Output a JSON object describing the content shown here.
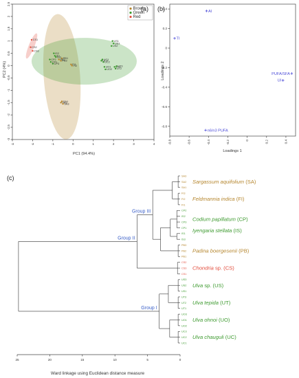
{
  "colors": {
    "Brown": "#b5862e",
    "Green": "#3d9a2f",
    "Red": "#e24d3d",
    "group": "#3a5fc8",
    "loading": "#4d4dd8"
  },
  "panels": {
    "a": "(a)",
    "b": "(b)",
    "c": "(c)"
  },
  "chart_data": [
    {
      "type": "scatter",
      "panel": "a",
      "xlabel": "PC1 (94.4%)",
      "ylabel": "PC2 (4%)",
      "xlim": [
        -3,
        4
      ],
      "ylim": [
        -3,
        2.5
      ],
      "xticks": [
        "-3",
        "-2",
        "-1",
        "0",
        "1",
        "2",
        "3",
        "4"
      ],
      "yticks": [
        "-3",
        "-2.5",
        "-2",
        "-1.5",
        "-1",
        "-0.5",
        "0",
        "0.5",
        "1",
        "1.5",
        "2",
        "2.5"
      ],
      "legend": {
        "placement": "top-right",
        "entries": [
          "Brown",
          "Green",
          "Red"
        ]
      },
      "groups": [
        {
          "name": "Brown",
          "ellipse": {
            "cx": -0.55,
            "cy": -0.45,
            "rx": 0.9,
            "ry": 2.55,
            "angle": -4
          },
          "points": [
            {
              "label": "SA1",
              "x": -0.55,
              "y": -1.45
            },
            {
              "label": "SA2",
              "x": -0.6,
              "y": -1.5
            },
            {
              "label": "SA3",
              "x": -0.5,
              "y": -1.55
            },
            {
              "label": "FI1",
              "x": -0.1,
              "y": 0.05
            },
            {
              "label": "FI2",
              "x": -0.05,
              "y": 0.0
            },
            {
              "label": "PB1",
              "x": -0.55,
              "y": 0.3
            },
            {
              "label": "PB2",
              "x": -0.7,
              "y": 0.25
            },
            {
              "label": "PB3",
              "x": -0.6,
              "y": 0.2
            }
          ]
        },
        {
          "name": "Green",
          "ellipse": {
            "cx": 0.55,
            "cy": 0.18,
            "rx": 2.6,
            "ry": 0.95,
            "angle": 0
          },
          "points": [
            {
              "label": "US1",
              "x": 1.95,
              "y": 1.0
            },
            {
              "label": "US2",
              "x": 1.9,
              "y": 0.8
            },
            {
              "label": "US3",
              "x": 2.0,
              "y": 0.9
            },
            {
              "label": "UT1",
              "x": 2.05,
              "y": -0.05
            },
            {
              "label": "UT2",
              "x": 2.1,
              "y": -0.12
            },
            {
              "label": "UT3",
              "x": 2.15,
              "y": -0.02
            },
            {
              "label": "UC1",
              "x": 1.45,
              "y": 0.25
            },
            {
              "label": "UC2",
              "x": 1.5,
              "y": 0.15
            },
            {
              "label": "UC3",
              "x": 1.4,
              "y": 0.2
            },
            {
              "label": "UO1",
              "x": 1.55,
              "y": -0.05
            },
            {
              "label": "UO2",
              "x": 1.6,
              "y": -0.15
            },
            {
              "label": "CP1",
              "x": -1.1,
              "y": 0.15
            },
            {
              "label": "CP2",
              "x": -1.15,
              "y": 0.25
            },
            {
              "label": "CP3",
              "x": -1.0,
              "y": 0.08
            },
            {
              "label": "IS1",
              "x": -0.9,
              "y": 0.4
            },
            {
              "label": "IS2",
              "x": -0.95,
              "y": 0.5
            },
            {
              "label": "IS3",
              "x": -0.85,
              "y": 0.35
            }
          ]
        },
        {
          "name": "Red",
          "ellipse": {
            "cx": -2.05,
            "cy": 0.8,
            "rx": 0.14,
            "ry": 0.55,
            "angle": 22
          },
          "points": [
            {
              "label": "CS1",
              "x": -2.05,
              "y": 1.05
            },
            {
              "label": "CS2",
              "x": -2.1,
              "y": 0.75
            },
            {
              "label": "CS3",
              "x": -2.0,
              "y": 0.6
            }
          ]
        }
      ]
    },
    {
      "type": "scatter",
      "panel": "b",
      "xlabel": "Loadings 1",
      "ylabel": "Loadings 2",
      "xlim": [
        -0.8,
        0.5
      ],
      "ylim": [
        -0.9,
        0.45
      ],
      "xticks": [
        "-0.8",
        "-0.6",
        "-0.4",
        "-0.2",
        "0",
        "0.2",
        "0.4"
      ],
      "yticks": [
        "-0.8",
        "-0.6",
        "-0.4",
        "-0.2",
        "0",
        "0.2",
        "0.4"
      ],
      "points": [
        {
          "label": "AI",
          "x": -0.42,
          "y": 0.38
        },
        {
          "label": "TI",
          "x": -0.75,
          "y": 0.1
        },
        {
          "label": "PUFA/SFA",
          "x": 0.46,
          "y": -0.26
        },
        {
          "label": "UI",
          "x": 0.37,
          "y": -0.33
        },
        {
          "label": "n6/n3 PUFA",
          "x": -0.43,
          "y": -0.84
        }
      ]
    },
    {
      "type": "dendrogram",
      "panel": "c",
      "xlabel": "Ward linkage using Euclidean distance measure",
      "xlim": [
        25,
        0
      ],
      "xticks": [
        "25",
        "20",
        "15",
        "10",
        "5",
        "0"
      ],
      "leaves": [
        "SA3",
        "SA2",
        "SA1",
        "FI3",
        "FI2",
        "FI1",
        "CP2",
        "IS2",
        "CP3",
        "CP1",
        "IS1",
        "IS3",
        "PB3",
        "PB2",
        "PB1",
        "CS2",
        "CS3",
        "CS1",
        "US3",
        "US2",
        "US1",
        "UT3",
        "UT2",
        "UT1",
        "UO3",
        "UO1",
        "UO2",
        "UC3",
        "UC2",
        "UC1"
      ],
      "leaf_groups": [
        "Brown",
        "Brown",
        "Brown",
        "Brown",
        "Brown",
        "Brown",
        "Green",
        "Green",
        "Green",
        "Green",
        "Green",
        "Green",
        "Brown",
        "Brown",
        "Brown",
        "Red",
        "Red",
        "Red",
        "Green",
        "Green",
        "Green",
        "Green",
        "Green",
        "Green",
        "Green",
        "Green",
        "Green",
        "Green",
        "Green",
        "Green"
      ],
      "species": [
        {
          "sci": "Sargassum aquifolium",
          "code": "(SA)",
          "group": "Brown",
          "first": 0,
          "last": 2
        },
        {
          "sci": "Feldmannia indica",
          "code": "(FI)",
          "group": "Brown",
          "first": 3,
          "last": 5
        },
        {
          "sci": "Codium papillatum",
          "code": "(CP)",
          "group": "Green",
          "first": 6,
          "last": 9
        },
        {
          "sci": "Iyengaria stellata",
          "code": "(IS)",
          "group": "Green",
          "first": 8,
          "last": 11
        },
        {
          "sci": "Padina boergesenii",
          "code": "(PB)",
          "group": "Brown",
          "first": 12,
          "last": 14
        },
        {
          "sci": "Chondria",
          "suffix": " sp. (CS)",
          "group": "Red",
          "first": 15,
          "last": 17
        },
        {
          "sci": "Ulva",
          "suffix": " sp. (US)",
          "group": "Green",
          "first": 18,
          "last": 20
        },
        {
          "sci": "Ulva tepida",
          "code": "(UT)",
          "group": "Green",
          "first": 21,
          "last": 23
        },
        {
          "sci": "Ulva ohnoi",
          "code": "(UO)",
          "group": "Green",
          "first": 24,
          "last": 26
        },
        {
          "sci": "Ulva chauguli",
          "code": "(UC)",
          "group": "Green",
          "first": 27,
          "last": 29
        }
      ],
      "group_labels": [
        {
          "text": "Group III",
          "node": "g3"
        },
        {
          "text": "Group II",
          "node": "g2"
        },
        {
          "text": "Group I",
          "node": "g1"
        }
      ],
      "tree": {
        "id": "root",
        "h": 24.8,
        "c": [
          {
            "id": "g2",
            "h": 6.6,
            "c": [
              {
                "id": "g3",
                "h": 4.2,
                "c": [
                  {
                    "h": 1.2,
                    "c": [
                      {
                        "h": 0.3,
                        "c": [
                          {
                            "l": 0
                          },
                          {
                            "l": 1
                          },
                          {
                            "l": 2
                          }
                        ]
                      },
                      {
                        "h": 0.3,
                        "c": [
                          {
                            "l": 3
                          },
                          {
                            "l": 4
                          },
                          {
                            "l": 5
                          }
                        ]
                      }
                    ]
                  },
                  {
                    "h": 3.0,
                    "c": [
                      {
                        "h": 1.5,
                        "c": [
                          {
                            "h": 0.5,
                            "c": [
                              {
                                "l": 6
                              },
                              {
                                "l": 7
                              },
                              {
                                "l": 8
                              },
                              {
                                "l": 9
                              }
                            ]
                          },
                          {
                            "h": 0.5,
                            "c": [
                              {
                                "l": 10
                              },
                              {
                                "l": 11
                              }
                            ]
                          }
                        ]
                      },
                      {
                        "h": 0.3,
                        "c": [
                          {
                            "l": 12
                          },
                          {
                            "l": 13
                          },
                          {
                            "l": 14
                          }
                        ]
                      }
                    ]
                  }
                ]
              },
              {
                "h": 0.4,
                "c": [
                  {
                    "l": 15
                  },
                  {
                    "l": 16
                  },
                  {
                    "l": 17
                  }
                ]
              }
            ]
          },
          {
            "id": "g1",
            "h": 3.2,
            "c": [
              {
                "h": 1.8,
                "c": [
                  {
                    "h": 0.3,
                    "c": [
                      {
                        "l": 18
                      },
                      {
                        "l": 19
                      },
                      {
                        "l": 20
                      }
                    ]
                  },
                  {
                    "h": 0.3,
                    "c": [
                      {
                        "l": 21
                      },
                      {
                        "l": 22
                      },
                      {
                        "l": 23
                      }
                    ]
                  }
                ]
              },
              {
                "h": 1.6,
                "c": [
                  {
                    "h": 0.3,
                    "c": [
                      {
                        "l": 24
                      },
                      {
                        "l": 25
                      },
                      {
                        "l": 26
                      }
                    ]
                  },
                  {
                    "h": 0.3,
                    "c": [
                      {
                        "l": 27
                      },
                      {
                        "l": 28
                      },
                      {
                        "l": 29
                      }
                    ]
                  }
                ]
              }
            ]
          }
        ]
      }
    }
  ]
}
